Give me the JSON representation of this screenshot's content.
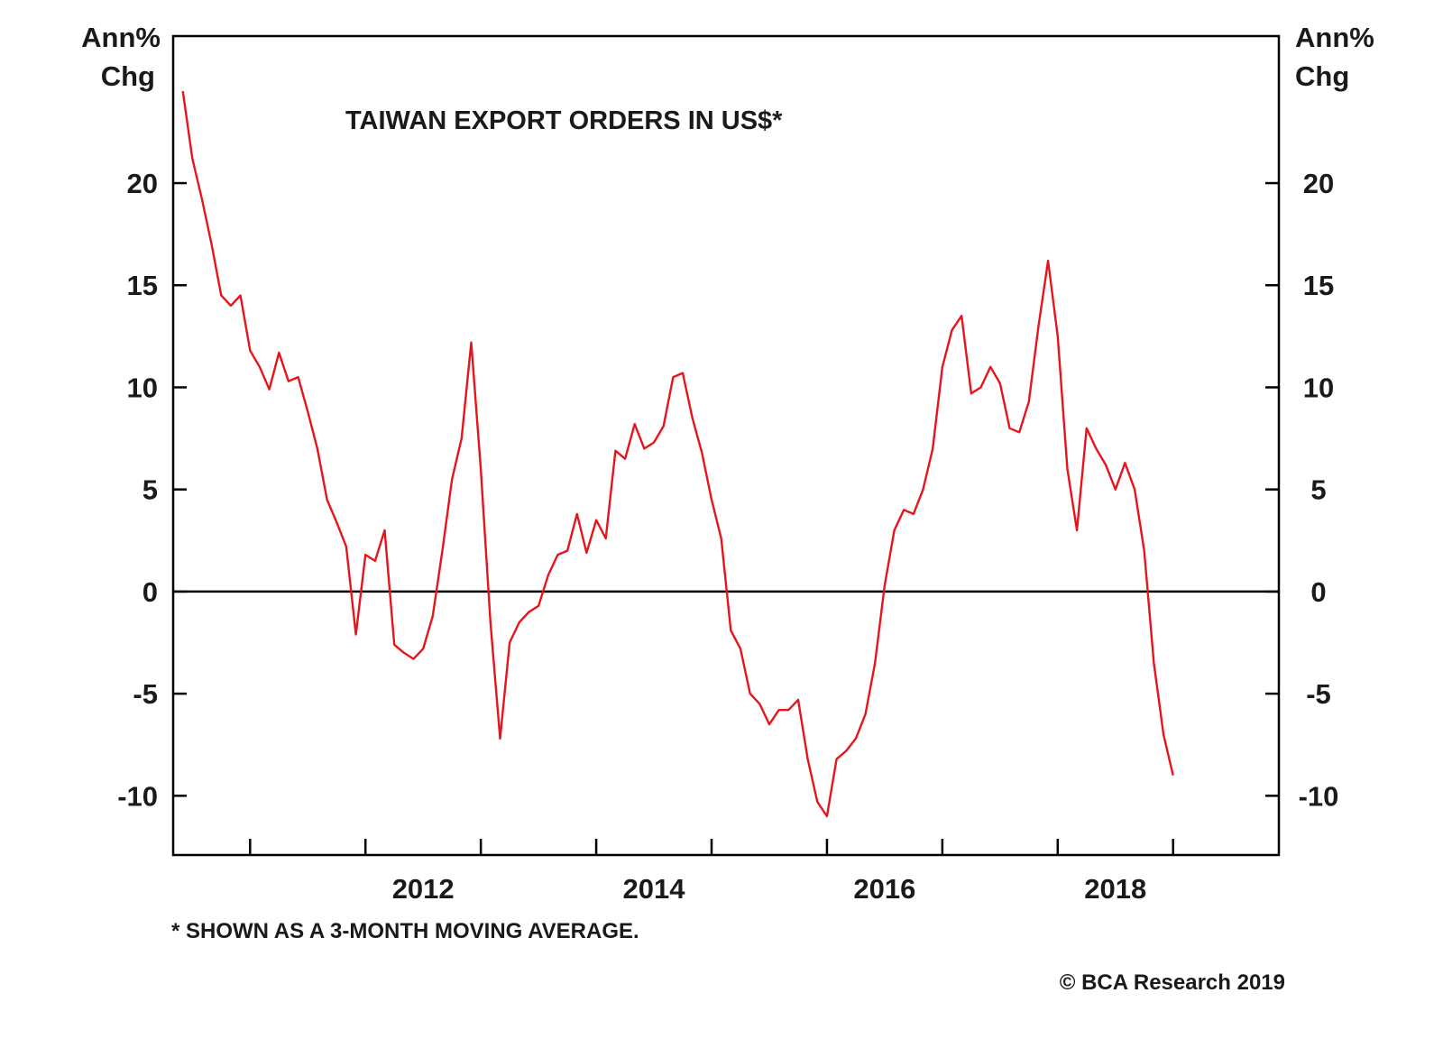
{
  "chart_data": {
    "type": "line",
    "title": "TAIWAN EXPORT ORDERS IN US$*",
    "left_unit": [
      "Ann%",
      "Chg"
    ],
    "right_unit": [
      "Ann%",
      "Chg"
    ],
    "footnote": "* SHOWN AS A 3-MONTH MOVING AVERAGE.",
    "source": "© BCA Research 2019",
    "x_range": [
      "2010-05",
      "2019-12"
    ],
    "ylim": [
      -12.9,
      27.2
    ],
    "y_ticks": [
      20,
      15,
      10,
      5,
      0,
      -5,
      -10
    ],
    "x_major_ticks": [
      "2012",
      "2014",
      "2016",
      "2018"
    ],
    "x_minor_ticks": [
      "2011",
      "2013",
      "2015",
      "2017",
      "2019"
    ],
    "grid": false,
    "zero_line": true,
    "series": [
      {
        "color": "#e8141b",
        "points": [
          [
            "2010-06",
            24.5
          ],
          [
            "2010-07",
            21.2
          ],
          [
            "2010-08",
            19.2
          ],
          [
            "2010-09",
            17.0
          ],
          [
            "2010-10",
            14.5
          ],
          [
            "2010-11",
            14.0
          ],
          [
            "2010-12",
            14.5
          ],
          [
            "2011-01",
            11.8
          ],
          [
            "2011-02",
            11.0
          ],
          [
            "2011-03",
            9.9
          ],
          [
            "2011-04",
            11.7
          ],
          [
            "2011-05",
            10.3
          ],
          [
            "2011-06",
            10.5
          ],
          [
            "2011-07",
            8.8
          ],
          [
            "2011-08",
            7.0
          ],
          [
            "2011-09",
            4.5
          ],
          [
            "2011-10",
            3.4
          ],
          [
            "2011-11",
            2.2
          ],
          [
            "2011-12",
            -2.1
          ],
          [
            "2012-01",
            1.8
          ],
          [
            "2012-02",
            1.5
          ],
          [
            "2012-03",
            3.0
          ],
          [
            "2012-04",
            -2.6
          ],
          [
            "2012-05",
            -3.0
          ],
          [
            "2012-06",
            -3.3
          ],
          [
            "2012-07",
            -2.8
          ],
          [
            "2012-08",
            -1.2
          ],
          [
            "2012-09",
            2.0
          ],
          [
            "2012-10",
            5.5
          ],
          [
            "2012-11",
            7.5
          ],
          [
            "2012-12",
            12.2
          ],
          [
            "2013-01",
            6.0
          ],
          [
            "2013-02",
            -1.5
          ],
          [
            "2013-03",
            -7.2
          ],
          [
            "2013-04",
            -2.5
          ],
          [
            "2013-05",
            -1.5
          ],
          [
            "2013-06",
            -1.0
          ],
          [
            "2013-07",
            -0.7
          ],
          [
            "2013-08",
            0.8
          ],
          [
            "2013-09",
            1.8
          ],
          [
            "2013-10",
            2.0
          ],
          [
            "2013-11",
            3.8
          ],
          [
            "2013-12",
            1.9
          ],
          [
            "2014-01",
            3.5
          ],
          [
            "2014-02",
            2.6
          ],
          [
            "2014-03",
            6.9
          ],
          [
            "2014-04",
            6.5
          ],
          [
            "2014-05",
            8.2
          ],
          [
            "2014-06",
            7.0
          ],
          [
            "2014-07",
            7.3
          ],
          [
            "2014-08",
            8.1
          ],
          [
            "2014-09",
            10.5
          ],
          [
            "2014-10",
            10.7
          ],
          [
            "2014-11",
            8.5
          ],
          [
            "2014-12",
            6.8
          ],
          [
            "2015-01",
            4.5
          ],
          [
            "2015-02",
            2.6
          ],
          [
            "2015-03",
            -1.9
          ],
          [
            "2015-04",
            -2.8
          ],
          [
            "2015-05",
            -5.0
          ],
          [
            "2015-06",
            -5.5
          ],
          [
            "2015-07",
            -6.5
          ],
          [
            "2015-08",
            -5.8
          ],
          [
            "2015-09",
            -5.8
          ],
          [
            "2015-10",
            -5.3
          ],
          [
            "2015-11",
            -8.2
          ],
          [
            "2015-12",
            -10.3
          ],
          [
            "2016-01",
            -11.0
          ],
          [
            "2016-02",
            -8.2
          ],
          [
            "2016-03",
            -7.8
          ],
          [
            "2016-04",
            -7.2
          ],
          [
            "2016-05",
            -6.0
          ],
          [
            "2016-06",
            -3.5
          ],
          [
            "2016-07",
            0.3
          ],
          [
            "2016-08",
            3.0
          ],
          [
            "2016-09",
            4.0
          ],
          [
            "2016-10",
            3.8
          ],
          [
            "2016-11",
            5.0
          ],
          [
            "2016-12",
            7.0
          ],
          [
            "2017-01",
            11.0
          ],
          [
            "2017-02",
            12.8
          ],
          [
            "2017-03",
            13.5
          ],
          [
            "2017-04",
            9.7
          ],
          [
            "2017-05",
            10.0
          ],
          [
            "2017-06",
            11.0
          ],
          [
            "2017-07",
            10.2
          ],
          [
            "2017-08",
            8.0
          ],
          [
            "2017-09",
            7.8
          ],
          [
            "2017-10",
            9.3
          ],
          [
            "2017-11",
            13.0
          ],
          [
            "2017-12",
            16.2
          ],
          [
            "2018-01",
            12.5
          ],
          [
            "2018-02",
            6.0
          ],
          [
            "2018-03",
            3.0
          ],
          [
            "2018-04",
            8.0
          ],
          [
            "2018-05",
            7.0
          ],
          [
            "2018-06",
            6.2
          ],
          [
            "2018-07",
            5.0
          ],
          [
            "2018-08",
            6.3
          ],
          [
            "2018-09",
            5.0
          ],
          [
            "2018-10",
            2.0
          ],
          [
            "2018-11",
            -3.5
          ],
          [
            "2018-12",
            -7.0
          ],
          [
            "2019-01",
            -9.0
          ]
        ]
      }
    ]
  }
}
